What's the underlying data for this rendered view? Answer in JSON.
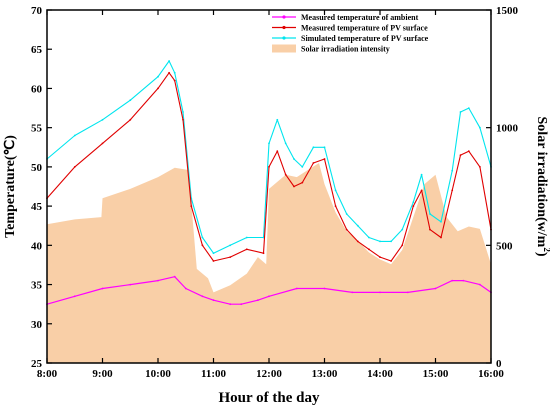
{
  "chart_data": {
    "type": "line",
    "xlabel": "Hour of the day",
    "ylabel_left": "Temperature(℃)",
    "ylabel_right_main": "Solar irradiation(w/m",
    "ylabel_right_sup": "2",
    "ylabel_right_end": ")",
    "x_ticks": [
      "8:00",
      "9:00",
      "10:00",
      "11:00",
      "12:00",
      "13:00",
      "14:00",
      "15:00",
      "16:00"
    ],
    "x_range_hours": [
      8,
      16
    ],
    "ylim_left": [
      25,
      70
    ],
    "yticks_left": [
      25,
      30,
      35,
      40,
      45,
      50,
      55,
      60,
      65,
      70
    ],
    "ylim_right": [
      0,
      1500
    ],
    "yticks_right": [
      0,
      500,
      1000,
      1500
    ],
    "legend_position": "top-right",
    "series": [
      {
        "name": "Measured temperature of ambient",
        "axis": "left",
        "color": "#ff00ff",
        "x": [
          8.0,
          8.5,
          9.0,
          9.5,
          10.0,
          10.3,
          10.5,
          10.8,
          11.0,
          11.3,
          11.5,
          11.8,
          12.0,
          12.5,
          13.0,
          13.5,
          14.0,
          14.5,
          15.0,
          15.3,
          15.5,
          15.8,
          16.0
        ],
        "y": [
          32.5,
          33.5,
          34.5,
          35.0,
          35.5,
          36.0,
          34.5,
          33.5,
          33.0,
          32.5,
          32.5,
          33.0,
          33.5,
          34.5,
          34.5,
          34.0,
          34.0,
          34.0,
          34.5,
          35.5,
          35.5,
          35.0,
          34.0
        ]
      },
      {
        "name": "Measured temperature of PV surface",
        "axis": "left",
        "color": "#e00000",
        "x": [
          8.0,
          8.5,
          9.0,
          9.5,
          10.0,
          10.2,
          10.3,
          10.45,
          10.6,
          10.8,
          11.0,
          11.3,
          11.6,
          11.9,
          12.0,
          12.15,
          12.3,
          12.45,
          12.6,
          12.8,
          13.0,
          13.2,
          13.4,
          13.6,
          13.8,
          14.0,
          14.2,
          14.4,
          14.6,
          14.75,
          14.9,
          15.1,
          15.3,
          15.45,
          15.6,
          15.8,
          16.0
        ],
        "y": [
          46.0,
          50.0,
          53.0,
          56.0,
          60.0,
          62.0,
          61.0,
          56.0,
          45.0,
          40.0,
          38.0,
          38.5,
          39.5,
          39.0,
          50.0,
          52.0,
          49.0,
          47.5,
          48.0,
          50.5,
          51.0,
          45.0,
          42.0,
          40.5,
          39.5,
          38.5,
          38.0,
          40.0,
          45.0,
          47.0,
          42.0,
          41.0,
          47.0,
          51.5,
          52.0,
          50.0,
          42.0
        ]
      },
      {
        "name": "Simulated temperature of PV surface",
        "axis": "left",
        "color": "#00e5ee",
        "x": [
          8.0,
          8.5,
          9.0,
          9.5,
          10.0,
          10.2,
          10.3,
          10.45,
          10.6,
          10.8,
          11.0,
          11.3,
          11.6,
          11.9,
          12.0,
          12.15,
          12.3,
          12.45,
          12.6,
          12.8,
          13.0,
          13.2,
          13.4,
          13.6,
          13.8,
          14.0,
          14.2,
          14.4,
          14.6,
          14.75,
          14.9,
          15.1,
          15.3,
          15.45,
          15.6,
          15.8,
          16.0
        ],
        "y": [
          51.0,
          54.0,
          56.0,
          58.5,
          61.5,
          63.5,
          62.0,
          57.0,
          46.0,
          41.0,
          39.0,
          40.0,
          41.0,
          41.0,
          53.0,
          56.0,
          53.0,
          51.0,
          50.0,
          52.5,
          52.5,
          47.0,
          44.0,
          42.5,
          41.0,
          40.5,
          40.5,
          42.0,
          45.5,
          49.0,
          44.0,
          43.0,
          49.5,
          57.0,
          57.5,
          55.0,
          50.0
        ]
      },
      {
        "name": "Solar irradiation intensity",
        "axis": "right",
        "color": "#f9cfa7",
        "x": [
          8.0,
          8.5,
          8.98,
          9.0,
          9.5,
          10.0,
          10.3,
          10.55,
          10.7,
          10.9,
          11.0,
          11.3,
          11.6,
          11.8,
          11.95,
          12.0,
          12.3,
          12.5,
          12.7,
          12.9,
          13.0,
          13.2,
          13.4,
          13.6,
          13.8,
          14.0,
          14.2,
          14.4,
          14.6,
          14.8,
          15.0,
          15.2,
          15.4,
          15.6,
          15.8,
          16.0
        ],
        "y": [
          590,
          610,
          620,
          700,
          740,
          790,
          830,
          820,
          400,
          360,
          300,
          330,
          380,
          450,
          420,
          740,
          800,
          790,
          820,
          850,
          760,
          640,
          560,
          520,
          470,
          440,
          420,
          480,
          620,
          760,
          800,
          620,
          560,
          580,
          570,
          420
        ]
      }
    ]
  }
}
